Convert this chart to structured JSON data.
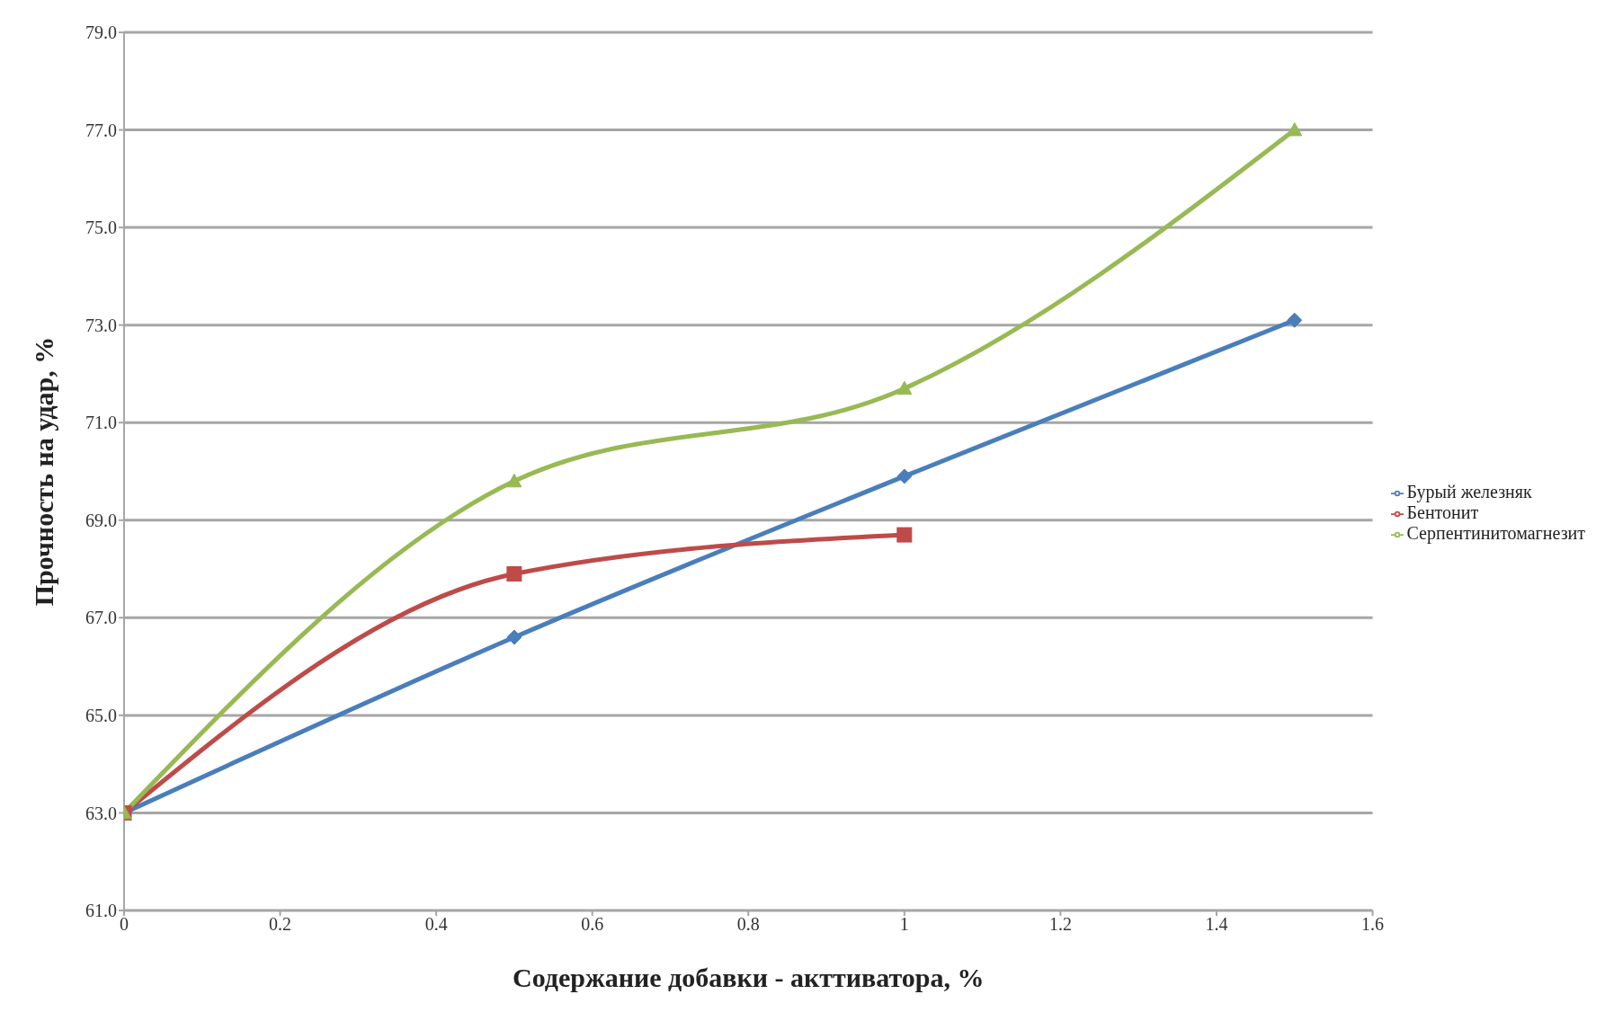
{
  "chart_data": {
    "type": "line",
    "xlabel": "Содержание добавки - акттиватора, %",
    "ylabel": "Прочность на удар, %",
    "series": [
      {
        "name": "Бурый железняк",
        "color": "#4a7ebb",
        "marker": "diamond",
        "x": [
          0,
          0.5,
          1,
          1.5
        ],
        "values": [
          63.0,
          66.6,
          69.9,
          73.1
        ]
      },
      {
        "name": "Бентонит",
        "color": "#be4b48",
        "marker": "square",
        "x": [
          0,
          0.5,
          1
        ],
        "values": [
          63.0,
          67.9,
          68.7
        ]
      },
      {
        "name": "Серпентинитомагнезит",
        "color": "#98b954",
        "marker": "triangle",
        "x": [
          0,
          0.5,
          1,
          1.5
        ],
        "values": [
          63.0,
          69.8,
          71.7,
          77.0
        ]
      }
    ],
    "xlim": [
      0,
      1.6
    ],
    "xticks": [
      0,
      0.2,
      0.4,
      0.6,
      0.8,
      1,
      1.2,
      1.4,
      1.6
    ],
    "ylim": [
      61,
      79
    ],
    "yticks": [
      {
        "value": 61,
        "label": "61.0"
      },
      {
        "value": 63,
        "label": "63.0"
      },
      {
        "value": 65,
        "label": "65.0"
      },
      {
        "value": 67,
        "label": "67.0"
      },
      {
        "value": 69,
        "label": "69.0"
      },
      {
        "value": 71,
        "label": "71.0"
      },
      {
        "value": 73,
        "label": "73.0"
      },
      {
        "value": 75,
        "label": "75.0"
      },
      {
        "value": 77,
        "label": "77.0"
      },
      {
        "value": 79,
        "label": "79.0"
      }
    ],
    "grid": "y",
    "legend": "right"
  }
}
